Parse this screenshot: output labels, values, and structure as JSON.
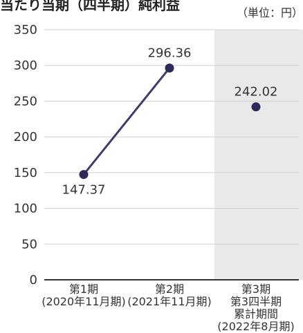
{
  "header": {
    "title_fragment": "当たり当期（四半期）純利益"
  },
  "chart_data": {
    "type": "line",
    "title": "",
    "unit_label": "（単位：円）",
    "ylim": [
      0,
      350
    ],
    "yticks": [
      0,
      50,
      100,
      150,
      200,
      250,
      300,
      350
    ],
    "grid": true,
    "categories": [
      {
        "id": "q1",
        "lines": [
          "第1期",
          "(2020年11月期)"
        ]
      },
      {
        "id": "q2",
        "lines": [
          "第2期",
          "(2021年11月期)"
        ]
      },
      {
        "id": "q3",
        "lines": [
          "第3期",
          "第3四半期",
          "累計期間",
          "(2022年8月期)"
        ]
      }
    ],
    "series": [
      {
        "values": [
          147.37,
          296.36,
          242.02
        ],
        "labels": [
          "147.37",
          "296.36",
          "242.02"
        ],
        "connected": [
          true,
          true,
          false
        ]
      }
    ],
    "highlight_category_index": 2,
    "colors": {
      "line": "#3f3b6b",
      "marker": "#2d2a57",
      "grid": "#cfcfcf",
      "axis": "#333333",
      "highlight": "#e9e9e9"
    }
  }
}
